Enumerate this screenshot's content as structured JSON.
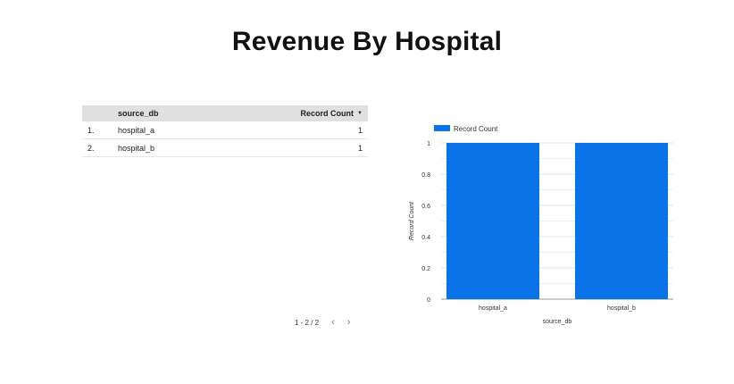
{
  "page": {
    "title": "Revenue By Hospital"
  },
  "table": {
    "headers": {
      "source": "source_db",
      "count": "Record Count"
    },
    "rows": [
      {
        "idx": "1.",
        "source": "hospital_a",
        "count": "1"
      },
      {
        "idx": "2.",
        "source": "hospital_b",
        "count": "1"
      }
    ],
    "pagination": {
      "label": "1 - 2 / 2",
      "prev": "‹",
      "next": "›"
    }
  },
  "colors": {
    "bar": "#0b73e8",
    "grid": "#e6e6e6",
    "axis": "#999999"
  },
  "chart_data": {
    "type": "bar",
    "categories": [
      "hospital_a",
      "hospital_b"
    ],
    "series": [
      {
        "name": "Record Count",
        "values": [
          1,
          1
        ]
      }
    ],
    "xlabel": "source_db",
    "ylabel": "Record Count",
    "ylim": [
      0,
      1
    ],
    "yticks": [
      0,
      0.2,
      0.4,
      0.6,
      0.8,
      1
    ],
    "ytick_labels": [
      "0",
      "0.2",
      "0.4",
      "0.6",
      "0.8",
      "1"
    ],
    "legend": "top-left",
    "grid": true
  }
}
